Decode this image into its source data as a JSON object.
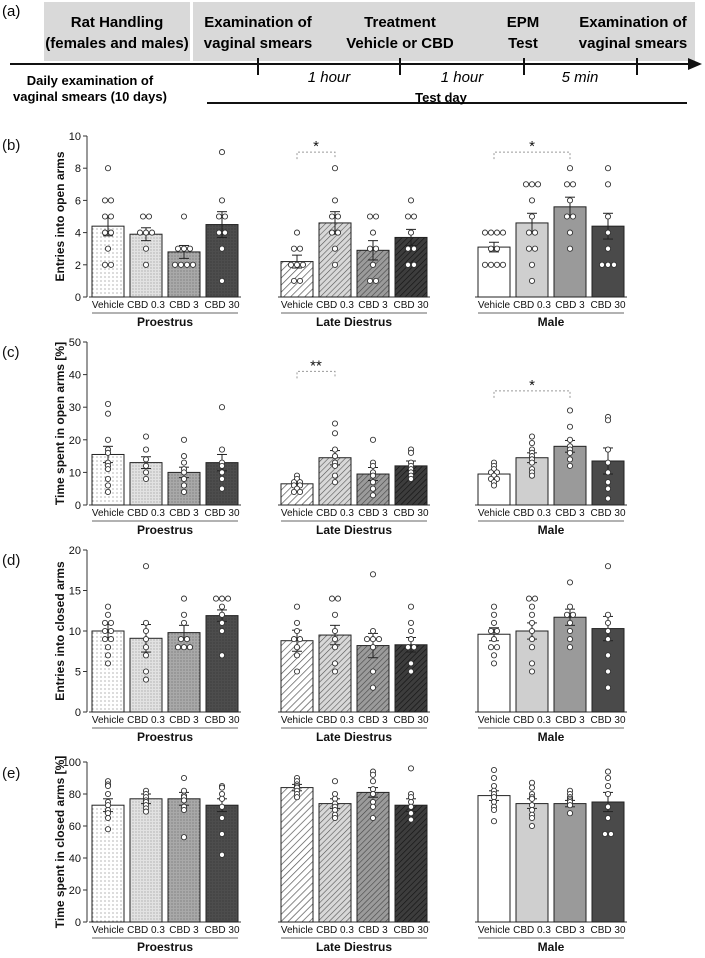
{
  "timeline": {
    "panel_label": "(a)",
    "boxes": [
      {
        "line1": "Rat Handling",
        "line2": "(females and males)"
      },
      {
        "line1": "Examination of",
        "line2": "vaginal smears"
      },
      {
        "line1": "Treatment",
        "line2": "Vehicle or CBD"
      },
      {
        "line1": "EPM",
        "line2": "Test"
      },
      {
        "line1": "Examination of",
        "line2": "vaginal smears"
      }
    ],
    "bottom_left_line1": "Daily examination of",
    "bottom_left_line2": "vaginal smears (10 days)",
    "intervals": [
      "1 hour",
      "1 hour",
      "5 min"
    ],
    "test_day": "Test day"
  },
  "groups": [
    "Proestrus",
    "Late Diestrus",
    "Male"
  ],
  "treatments": [
    "Vehicle",
    "CBD 0.3",
    "CBD 3",
    "CBD 30"
  ],
  "colors": {
    "proestrus": [
      "#ffffff",
      "#e0e0e0",
      "#a8a8a8",
      "#505050"
    ],
    "late_diestrus": [
      "#ffffff",
      "#dcdcdc",
      "#9a9a9a",
      "#3c3c3c"
    ],
    "male": [
      "#ffffff",
      "#cfcfcf",
      "#9a9a9a",
      "#4a4a4a"
    ],
    "sig_bracket": "#9a9a9a"
  },
  "chart_data": [
    {
      "panel_label": "(b)",
      "type": "bar",
      "ylabel": "Entries into open arms",
      "ylim": [
        0,
        10
      ],
      "yticks": [
        0,
        2,
        4,
        6,
        8,
        10
      ],
      "groups": [
        {
          "name": "Proestrus",
          "means": [
            4.4,
            3.9,
            2.8,
            4.5
          ],
          "sem": [
            0.6,
            0.4,
            0.4,
            0.8
          ],
          "points": [
            [
              8,
              6,
              6,
              5,
              5,
              4,
              4,
              3,
              2,
              2
            ],
            [
              5,
              5,
              4,
              4,
              4,
              3,
              2
            ],
            [
              5,
              3,
              3,
              3,
              2,
              2,
              2,
              2
            ],
            [
              9,
              6,
              5,
              5,
              4,
              4,
              3,
              1
            ]
          ]
        },
        {
          "name": "Late Diestrus",
          "means": [
            2.2,
            4.6,
            2.9,
            3.7
          ],
          "sem": [
            0.4,
            0.7,
            0.6,
            0.5
          ],
          "points": [
            [
              4,
              3,
              3,
              2,
              2,
              2,
              1,
              1
            ],
            [
              8,
              6,
              5,
              5,
              4,
              4,
              3,
              2
            ],
            [
              5,
              5,
              4,
              3,
              3,
              2,
              1,
              1
            ],
            [
              6,
              5,
              5,
              4,
              3,
              3,
              2,
              2
            ]
          ]
        },
        {
          "name": "Male",
          "means": [
            3.1,
            4.6,
            5.6,
            4.4
          ],
          "sem": [
            0.3,
            0.6,
            0.6,
            0.8
          ],
          "points": [
            [
              4,
              4,
              4,
              4,
              3,
              3,
              2,
              2,
              2,
              2
            ],
            [
              7,
              7,
              7,
              6,
              5,
              4,
              4,
              3,
              3,
              2,
              1
            ],
            [
              8,
              7,
              7,
              6,
              5,
              5,
              4,
              3
            ],
            [
              8,
              7,
              5,
              4,
              3,
              2,
              2,
              2
            ]
          ]
        }
      ],
      "significance": [
        {
          "group": 1,
          "from": 0,
          "to": 1,
          "label": "*",
          "y": 9.0
        },
        {
          "group": 2,
          "from": 0,
          "to": 2,
          "label": "*",
          "y": 9.0
        }
      ]
    },
    {
      "panel_label": "(c)",
      "type": "bar",
      "ylabel": "Time spent in open arms [%]",
      "ylim": [
        0,
        50
      ],
      "yticks": [
        0,
        10,
        20,
        30,
        40,
        50
      ],
      "groups": [
        {
          "name": "Proestrus",
          "means": [
            15.5,
            13.0,
            10.0,
            13.0
          ],
          "sem": [
            2.5,
            1.8,
            1.6,
            2.5
          ],
          "points": [
            [
              31,
              28,
              20,
              17,
              16,
              13,
              12,
              11,
              8,
              6,
              4
            ],
            [
              21,
              17,
              14,
              12,
              10,
              8
            ],
            [
              20,
              15,
              13,
              11,
              10,
              8,
              6,
              4
            ],
            [
              30,
              17,
              13,
              12,
              10,
              8,
              5
            ]
          ]
        },
        {
          "name": "Late Diestrus",
          "means": [
            6.5,
            14.5,
            9.5,
            12.0
          ],
          "sem": [
            1.0,
            2.2,
            2.0,
            1.5
          ],
          "points": [
            [
              9,
              8,
              7,
              7,
              6,
              6,
              5,
              4,
              4
            ],
            [
              25,
              22,
              17,
              15,
              13,
              12,
              9,
              7
            ],
            [
              20,
              13,
              12,
              10,
              9,
              7,
              5,
              3
            ],
            [
              17,
              16,
              13,
              12,
              11,
              10,
              9,
              8
            ]
          ]
        },
        {
          "name": "Male",
          "means": [
            9.5,
            14.5,
            18.0,
            13.5
          ],
          "sem": [
            1.0,
            1.5,
            1.8,
            4.0
          ],
          "points": [
            [
              13,
              12,
              11,
              10,
              10,
              9,
              8,
              8,
              7,
              6
            ],
            [
              21,
              19,
              17,
              16,
              15,
              14,
              13,
              11,
              10,
              9
            ],
            [
              29,
              24,
              20,
              18,
              17,
              16,
              14,
              12
            ],
            [
              27,
              26,
              17,
              13,
              10,
              7,
              5,
              2
            ]
          ]
        }
      ],
      "significance": [
        {
          "group": 1,
          "from": 0,
          "to": 1,
          "label": "**",
          "y": 41.0
        },
        {
          "group": 2,
          "from": 0,
          "to": 2,
          "label": "*",
          "y": 35.0
        }
      ]
    },
    {
      "panel_label": "(d)",
      "type": "bar",
      "ylabel": "Entries into closed arms",
      "ylim": [
        0,
        20
      ],
      "yticks": [
        0,
        5,
        10,
        15,
        20
      ],
      "groups": [
        {
          "name": "Proestrus",
          "means": [
            10.0,
            9.1,
            9.8,
            11.9
          ],
          "sem": [
            0.8,
            1.7,
            0.9,
            0.7
          ],
          "points": [
            [
              13,
              12,
              11,
              11,
              10,
              10,
              9,
              9,
              8,
              7,
              6
            ],
            [
              18,
              11,
              10,
              9,
              8,
              7,
              5,
              4
            ],
            [
              14,
              12,
              11,
              9,
              9,
              8,
              8,
              8
            ],
            [
              14,
              14,
              14,
              13,
              12,
              11,
              10,
              7
            ]
          ]
        },
        {
          "name": "Late Diestrus",
          "means": [
            8.8,
            9.5,
            8.2,
            8.3
          ],
          "sem": [
            1.3,
            1.2,
            1.5,
            0.9
          ],
          "points": [
            [
              13,
              11,
              10,
              9,
              9,
              8,
              7,
              5
            ],
            [
              14,
              14,
              12,
              10,
              9,
              8,
              6,
              5
            ],
            [
              17,
              10,
              9,
              9,
              9,
              8,
              5,
              3
            ],
            [
              13,
              11,
              10,
              9,
              8,
              8,
              6,
              5
            ]
          ]
        },
        {
          "name": "Male",
          "means": [
            9.6,
            10.0,
            11.7,
            10.3
          ],
          "sem": [
            0.8,
            1.0,
            1.0,
            1.5
          ],
          "points": [
            [
              13,
              12,
              11,
              10,
              10,
              9,
              8,
              8,
              7,
              6
            ],
            [
              14,
              14,
              13,
              12,
              11,
              10,
              9,
              8,
              6,
              5
            ],
            [
              16,
              13,
              12,
              12,
              11,
              10,
              9,
              8
            ],
            [
              18,
              12,
              11,
              10,
              9,
              7,
              5,
              3
            ]
          ]
        }
      ],
      "significance": []
    },
    {
      "panel_label": "(e)",
      "type": "bar",
      "ylabel": "Time spent in closed arms [%]",
      "ylim": [
        0,
        100
      ],
      "yticks": [
        0,
        20,
        40,
        60,
        80,
        100
      ],
      "groups": [
        {
          "name": "Proestrus",
          "means": [
            73,
            77,
            77,
            73
          ],
          "sem": [
            4,
            3,
            4,
            4
          ],
          "points": [
            [
              88,
              86,
              85,
              80,
              75,
              73,
              70,
              68,
              65,
              58
            ],
            [
              82,
              80,
              78,
              76,
              75,
              73,
              71,
              69
            ],
            [
              90,
              82,
              79,
              78,
              76,
              72,
              70,
              53
            ],
            [
              85,
              84,
              80,
              77,
              72,
              65,
              55,
              42
            ]
          ]
        },
        {
          "name": "Late Diestrus",
          "means": [
            84,
            74,
            81,
            73
          ],
          "sem": [
            2,
            3,
            3,
            4
          ],
          "points": [
            [
              90,
              88,
              86,
              85,
              84,
              82,
              80,
              78
            ],
            [
              88,
              80,
              77,
              74,
              72,
              70,
              67,
              65
            ],
            [
              94,
              92,
              88,
              83,
              80,
              75,
              72,
              65
            ],
            [
              96,
              80,
              78,
              75,
              72,
              68,
              64
            ]
          ]
        },
        {
          "name": "Male",
          "means": [
            79,
            74,
            74,
            75
          ],
          "sem": [
            3,
            3,
            2,
            6
          ],
          "points": [
            [
              95,
              90,
              85,
              82,
              80,
              78,
              75,
              72,
              70,
              63
            ],
            [
              87,
              84,
              80,
              78,
              77,
              73,
              70,
              67,
              65,
              60
            ],
            [
              82,
              80,
              78,
              77,
              76,
              75,
              73,
              68
            ],
            [
              94,
              90,
              85,
              80,
              72,
              65,
              55,
              55
            ]
          ]
        }
      ],
      "significance": []
    }
  ]
}
